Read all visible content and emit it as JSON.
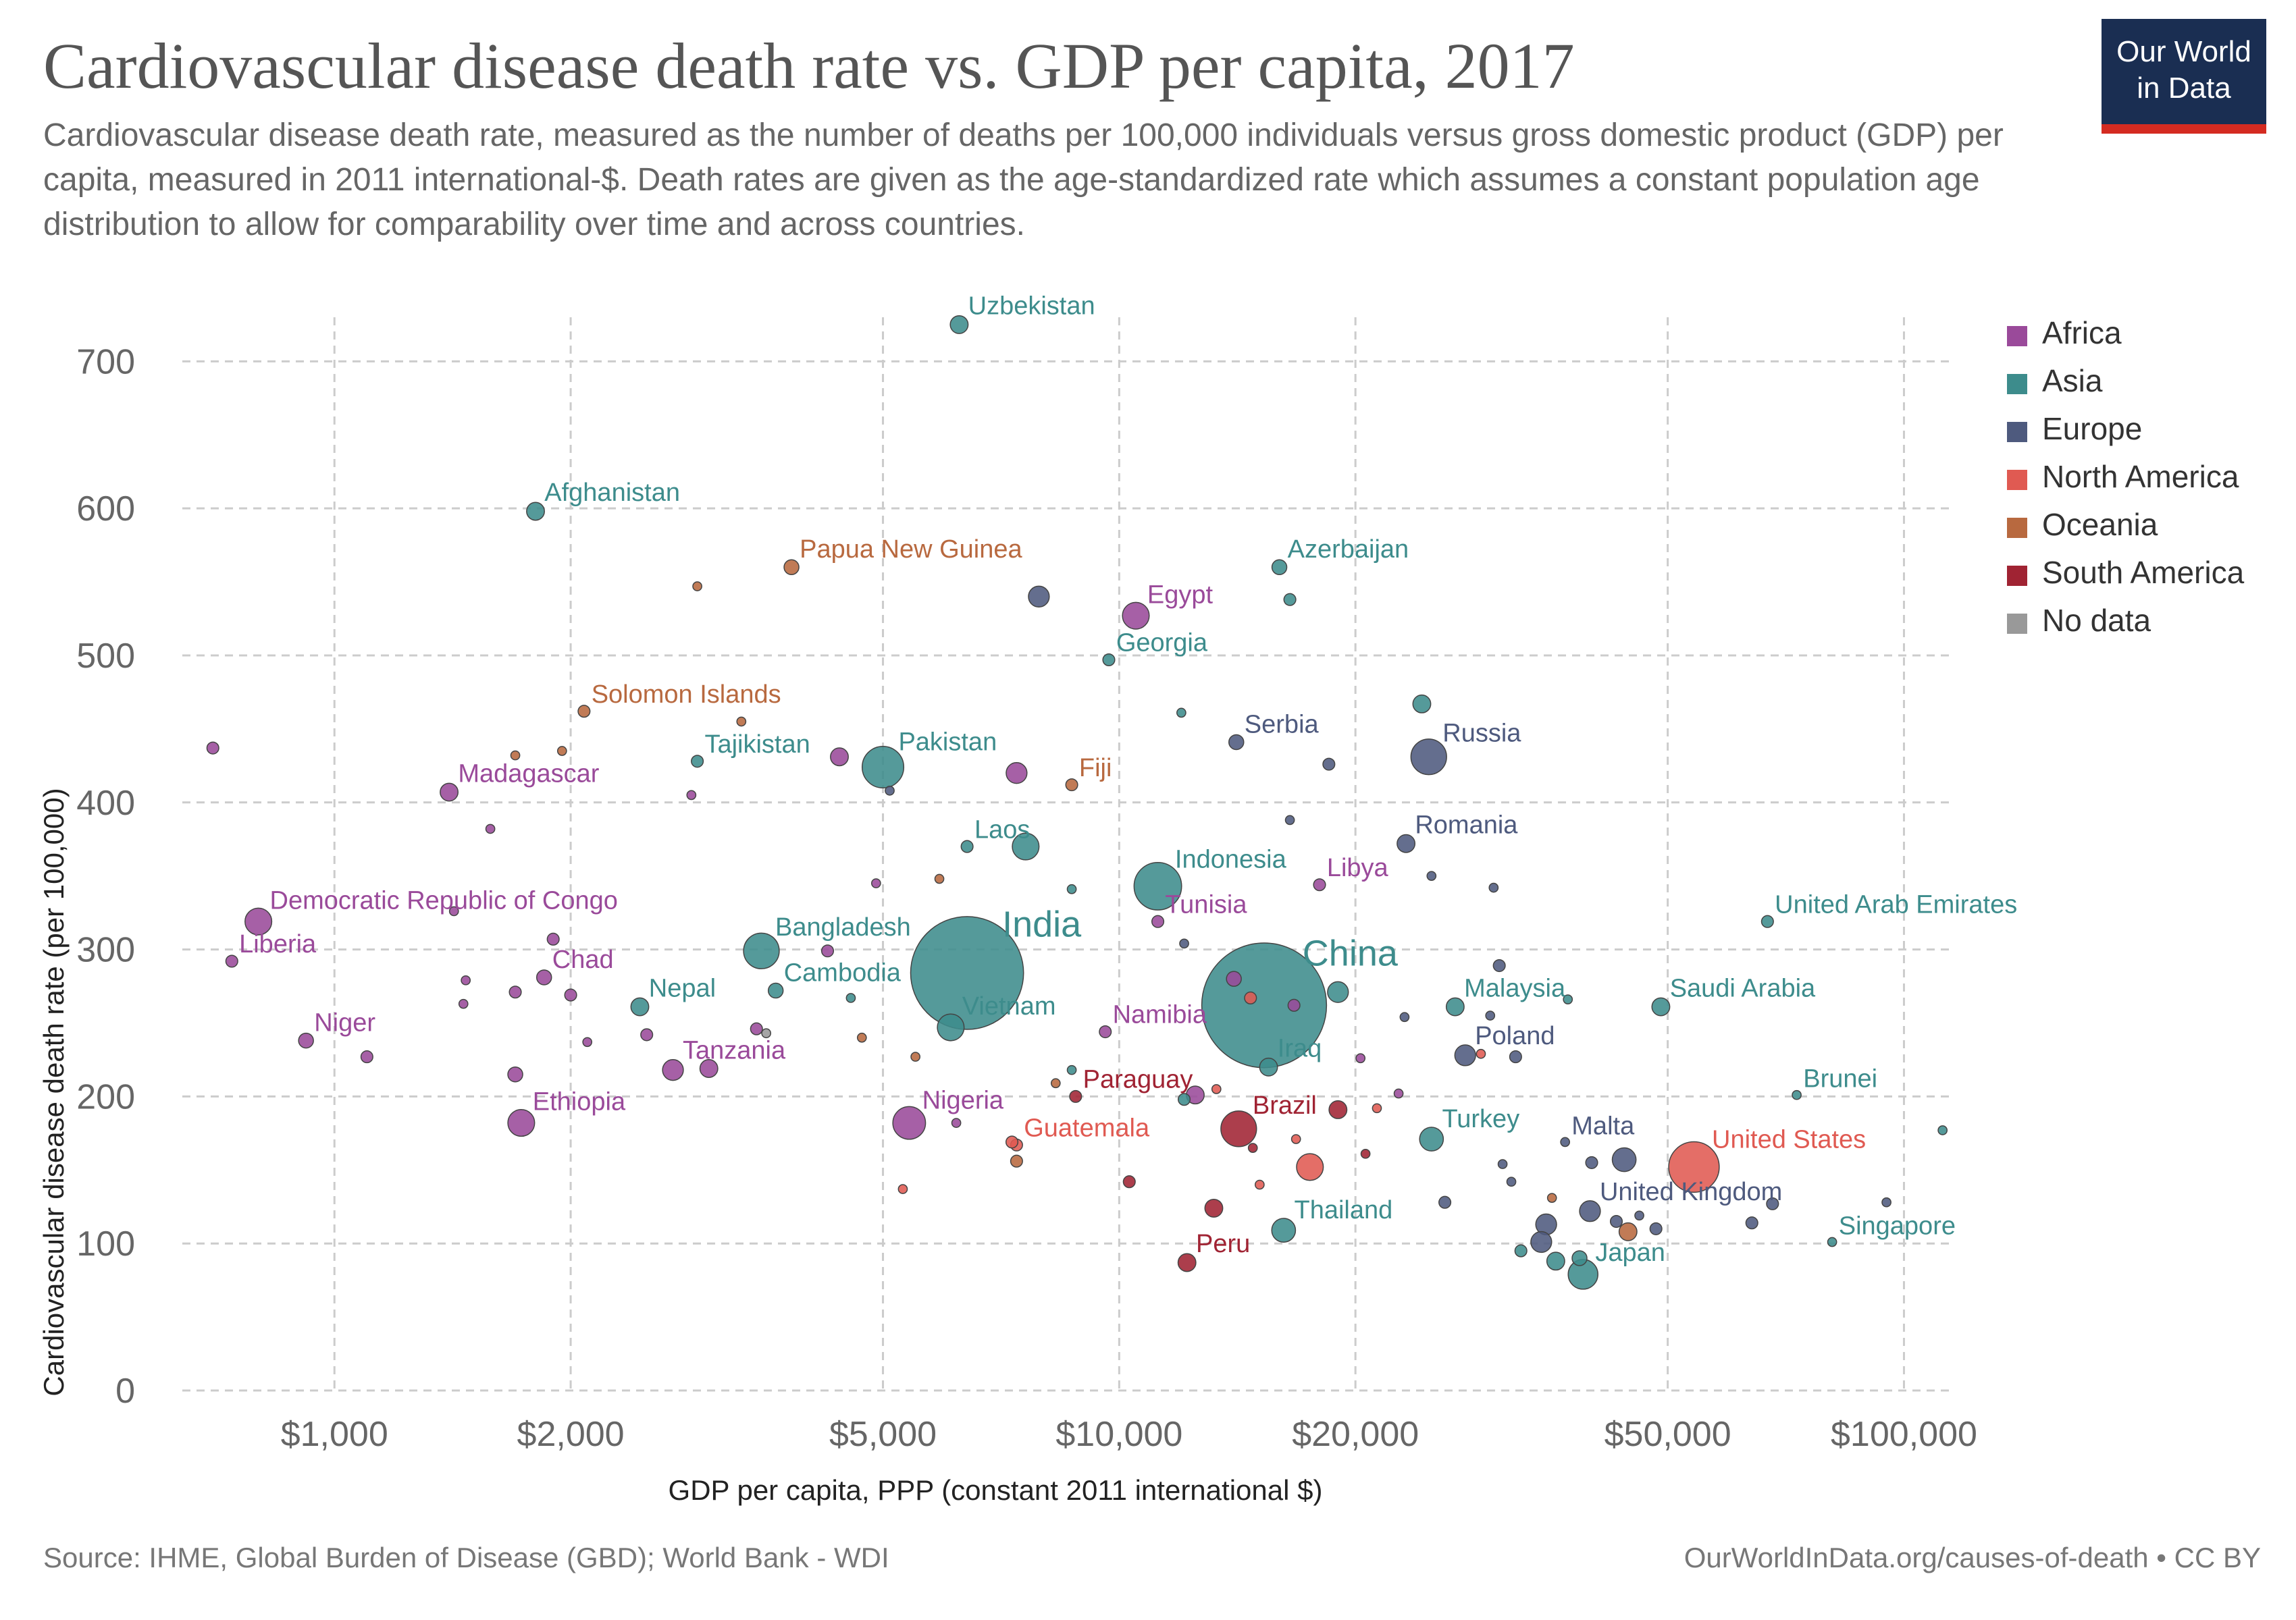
{
  "header": {
    "title": "Cardiovascular disease death rate vs. GDP per capita, 2017",
    "subtitle": "Cardiovascular disease death rate, measured as the number of deaths per 100,000 individuals versus gross domestic product (GDP) per capita, measured in 2011 international-$. Death rates are given as the age-standardized rate which assumes a constant population age distribution to allow for comparability over time and across countries."
  },
  "logo": {
    "line1": "Our World",
    "line2": "in Data"
  },
  "footer": {
    "source": "Source: IHME, Global Burden of Disease (GBD); World Bank - WDI",
    "credit": "OurWorldInData.org/causes-of-death • CC BY"
  },
  "colors": {
    "Africa": "#9a4a9a",
    "Asia": "#3d8c8c",
    "Europe": "#4e5a7e",
    "North America": "#e05a52",
    "Oceania": "#b8693f",
    "South America": "#a02333",
    "No data": "#999999"
  },
  "chart_data": {
    "type": "scatter",
    "title": "Cardiovascular disease death rate vs. GDP per capita, 2017",
    "xlabel": "GDP per capita, PPP (constant 2011 international $)",
    "ylabel": "Cardiovascular disease death rate (per 100,000)",
    "x_scale": "log",
    "xlim": [
      640,
      115000
    ],
    "ylim": [
      0,
      730
    ],
    "x_ticks": [
      1000,
      2000,
      5000,
      10000,
      20000,
      50000,
      100000
    ],
    "x_tick_labels": [
      "$1,000",
      "$2,000",
      "$5,000",
      "$10,000",
      "$20,000",
      "$50,000",
      "$100,000"
    ],
    "y_ticks": [
      0,
      100,
      200,
      300,
      400,
      500,
      600,
      700
    ],
    "y_tick_labels": [
      "0",
      "100",
      "200",
      "300",
      "400",
      "500",
      "600",
      "700"
    ],
    "grid": true,
    "legend_position": "right",
    "legend": [
      "Africa",
      "Asia",
      "Europe",
      "North America",
      "Oceania",
      "South America",
      "No data"
    ],
    "points": [
      {
        "label": "Uzbekistan",
        "region": "Asia",
        "x": 6253,
        "y": 725,
        "size": 6
      },
      {
        "label": "Afghanistan",
        "region": "Asia",
        "x": 1804,
        "y": 598,
        "size": 6
      },
      {
        "label": "Papua New Guinea",
        "region": "Oceania",
        "x": 3823,
        "y": 560,
        "size": 5
      },
      {
        "label": "Azerbaijan",
        "region": "Asia",
        "x": 16000,
        "y": 560,
        "size": 5
      },
      {
        "label": "Egypt",
        "region": "Africa",
        "x": 10500,
        "y": 527,
        "size": 9
      },
      {
        "label": "Georgia",
        "region": "Asia",
        "x": 9700,
        "y": 497,
        "size": 4
      },
      {
        "label": "Solomon Islands",
        "region": "Oceania",
        "x": 2080,
        "y": 462,
        "size": 4
      },
      {
        "label": "Serbia",
        "region": "Europe",
        "x": 14100,
        "y": 441,
        "size": 5
      },
      {
        "label": "Russia",
        "region": "Europe",
        "x": 24800,
        "y": 431,
        "size": 12
      },
      {
        "label": "Pakistan",
        "region": "Asia",
        "x": 5000,
        "y": 424,
        "size": 14
      },
      {
        "label": "Tajikistan",
        "region": "Asia",
        "x": 2900,
        "y": 428,
        "size": 4
      },
      {
        "label": "Fiji",
        "region": "Oceania",
        "x": 8700,
        "y": 412,
        "size": 4
      },
      {
        "label": "Madagascar",
        "region": "Africa",
        "x": 1400,
        "y": 407,
        "size": 6
      },
      {
        "label": "Laos",
        "region": "Asia",
        "x": 6400,
        "y": 370,
        "size": 4
      },
      {
        "label": "Romania",
        "region": "Europe",
        "x": 23200,
        "y": 372,
        "size": 6
      },
      {
        "label": "Indonesia",
        "region": "Asia",
        "x": 11200,
        "y": 343,
        "size": 16
      },
      {
        "label": "Libya",
        "region": "Africa",
        "x": 18000,
        "y": 344,
        "size": 4
      },
      {
        "label": "Democratic Republic of Congo",
        "region": "Africa",
        "x": 800,
        "y": 319,
        "size": 9
      },
      {
        "label": "United Arab Emirates",
        "region": "Asia",
        "x": 67000,
        "y": 319,
        "size": 4
      },
      {
        "label": "Tunisia",
        "region": "Africa",
        "x": 11200,
        "y": 319,
        "size": 4
      },
      {
        "label": "India",
        "region": "Asia",
        "x": 6400,
        "y": 284,
        "size": 38
      },
      {
        "label": "Bangladesh",
        "region": "Asia",
        "x": 3500,
        "y": 299,
        "size": 12
      },
      {
        "label": "China",
        "region": "Asia",
        "x": 15300,
        "y": 262,
        "size": 42
      },
      {
        "label": "Liberia",
        "region": "Africa",
        "x": 740,
        "y": 292,
        "size": 4
      },
      {
        "label": "Chad",
        "region": "Africa",
        "x": 1850,
        "y": 281,
        "size": 5
      },
      {
        "label": "Cambodia",
        "region": "Asia",
        "x": 3650,
        "y": 272,
        "size": 5
      },
      {
        "label": "Malaysia",
        "region": "Asia",
        "x": 26800,
        "y": 261,
        "size": 6
      },
      {
        "label": "Saudi Arabia",
        "region": "Asia",
        "x": 49000,
        "y": 261,
        "size": 6
      },
      {
        "label": "Nepal",
        "region": "Asia",
        "x": 2450,
        "y": 261,
        "size": 6
      },
      {
        "label": "Vietnam",
        "region": "Asia",
        "x": 6100,
        "y": 247,
        "size": 9
      },
      {
        "label": "Namibia",
        "region": "Africa",
        "x": 9600,
        "y": 244,
        "size": 4
      },
      {
        "label": "Niger",
        "region": "Africa",
        "x": 920,
        "y": 238,
        "size": 5
      },
      {
        "label": "Poland",
        "region": "Europe",
        "x": 27600,
        "y": 228,
        "size": 7
      },
      {
        "label": "Tanzania",
        "region": "Africa",
        "x": 2700,
        "y": 218,
        "size": 7
      },
      {
        "label": "Iraq",
        "region": "Asia",
        "x": 15500,
        "y": 220,
        "size": 6
      },
      {
        "label": "Brunei",
        "region": "Asia",
        "x": 73000,
        "y": 201,
        "size": 3
      },
      {
        "label": "Paraguay",
        "region": "South America",
        "x": 8800,
        "y": 200,
        "size": 4
      },
      {
        "label": "Ethiopia",
        "region": "Africa",
        "x": 1730,
        "y": 182,
        "size": 9
      },
      {
        "label": "Nigeria",
        "region": "Africa",
        "x": 5400,
        "y": 182,
        "size": 11
      },
      {
        "label": "Brazil",
        "region": "South America",
        "x": 14200,
        "y": 178,
        "size": 12
      },
      {
        "label": "Turkey",
        "region": "Asia",
        "x": 25000,
        "y": 171,
        "size": 8
      },
      {
        "label": "Malta",
        "region": "Europe",
        "x": 37000,
        "y": 169,
        "size": 3
      },
      {
        "label": "United States",
        "region": "North America",
        "x": 54000,
        "y": 152,
        "size": 17
      },
      {
        "label": "Guatemala",
        "region": "North America",
        "x": 7400,
        "y": 167,
        "size": 4
      },
      {
        "label": "United Kingdom",
        "region": "Europe",
        "x": 39800,
        "y": 122,
        "size": 7
      },
      {
        "label": "Thailand",
        "region": "Asia",
        "x": 16200,
        "y": 109,
        "size": 8
      },
      {
        "label": "Singapore",
        "region": "Asia",
        "x": 81000,
        "y": 101,
        "size": 3
      },
      {
        "label": "Peru",
        "region": "South America",
        "x": 12200,
        "y": 87,
        "size": 6
      },
      {
        "label": "Japan",
        "region": "Asia",
        "x": 39000,
        "y": 79,
        "size": 10
      },
      {
        "label": "",
        "region": "Africa",
        "x": 700,
        "y": 437,
        "size": 4
      },
      {
        "label": "",
        "region": "Oceania",
        "x": 2900,
        "y": 547,
        "size": 3
      },
      {
        "label": "",
        "region": "Europe",
        "x": 7900,
        "y": 540,
        "size": 7
      },
      {
        "label": "",
        "region": "Asia",
        "x": 16500,
        "y": 538,
        "size": 4
      },
      {
        "label": "",
        "region": "Asia",
        "x": 12000,
        "y": 461,
        "size": 3
      },
      {
        "label": "",
        "region": "Asia",
        "x": 24300,
        "y": 467,
        "size": 6
      },
      {
        "label": "",
        "region": "Oceania",
        "x": 3300,
        "y": 455,
        "size": 3
      },
      {
        "label": "",
        "region": "Africa",
        "x": 4400,
        "y": 431,
        "size": 6
      },
      {
        "label": "",
        "region": "Africa",
        "x": 7400,
        "y": 420,
        "size": 7
      },
      {
        "label": "",
        "region": "Oceania",
        "x": 1700,
        "y": 432,
        "size": 3
      },
      {
        "label": "",
        "region": "Oceania",
        "x": 1950,
        "y": 435,
        "size": 3
      },
      {
        "label": "",
        "region": "Africa",
        "x": 2850,
        "y": 405,
        "size": 3
      },
      {
        "label": "",
        "region": "Europe",
        "x": 18500,
        "y": 426,
        "size": 4
      },
      {
        "label": "",
        "region": "Europe",
        "x": 5100,
        "y": 408,
        "size": 3
      },
      {
        "label": "",
        "region": "Africa",
        "x": 1580,
        "y": 382,
        "size": 3
      },
      {
        "label": "",
        "region": "Asia",
        "x": 7600,
        "y": 370,
        "size": 9
      },
      {
        "label": "",
        "region": "Europe",
        "x": 16500,
        "y": 388,
        "size": 3
      },
      {
        "label": "",
        "region": "Africa",
        "x": 4900,
        "y": 345,
        "size": 3
      },
      {
        "label": "",
        "region": "Oceania",
        "x": 5900,
        "y": 348,
        "size": 3
      },
      {
        "label": "",
        "region": "Asia",
        "x": 8700,
        "y": 341,
        "size": 3
      },
      {
        "label": "",
        "region": "Europe",
        "x": 25000,
        "y": 350,
        "size": 3
      },
      {
        "label": "",
        "region": "Europe",
        "x": 30000,
        "y": 342,
        "size": 3
      },
      {
        "label": "",
        "region": "Africa",
        "x": 1420,
        "y": 326,
        "size": 3
      },
      {
        "label": "",
        "region": "Africa",
        "x": 1900,
        "y": 307,
        "size": 4
      },
      {
        "label": "",
        "region": "Africa",
        "x": 4250,
        "y": 299,
        "size": 4
      },
      {
        "label": "",
        "region": "Europe",
        "x": 12100,
        "y": 304,
        "size": 3
      },
      {
        "label": "",
        "region": "Europe",
        "x": 30500,
        "y": 289,
        "size": 4
      },
      {
        "label": "",
        "region": "Africa",
        "x": 1470,
        "y": 279,
        "size": 3
      },
      {
        "label": "",
        "region": "Africa",
        "x": 1700,
        "y": 271,
        "size": 4
      },
      {
        "label": "",
        "region": "Africa",
        "x": 2000,
        "y": 269,
        "size": 4
      },
      {
        "label": "",
        "region": "Africa",
        "x": 1460,
        "y": 263,
        "size": 3
      },
      {
        "label": "",
        "region": "Asia",
        "x": 4550,
        "y": 267,
        "size": 3
      },
      {
        "label": "",
        "region": "Africa",
        "x": 14000,
        "y": 280,
        "size": 5
      },
      {
        "label": "",
        "region": "North America",
        "x": 14700,
        "y": 267,
        "size": 4
      },
      {
        "label": "",
        "region": "Africa",
        "x": 16700,
        "y": 262,
        "size": 4
      },
      {
        "label": "",
        "region": "Asia",
        "x": 19000,
        "y": 271,
        "size": 7
      },
      {
        "label": "",
        "region": "Europe",
        "x": 23100,
        "y": 254,
        "size": 3
      },
      {
        "label": "",
        "region": "Europe",
        "x": 29700,
        "y": 255,
        "size": 3
      },
      {
        "label": "",
        "region": "Asia",
        "x": 37300,
        "y": 266,
        "size": 3
      },
      {
        "label": "",
        "region": "Africa",
        "x": 2100,
        "y": 237,
        "size": 3
      },
      {
        "label": "",
        "region": "Africa",
        "x": 2500,
        "y": 242,
        "size": 4
      },
      {
        "label": "",
        "region": "Africa",
        "x": 3450,
        "y": 246,
        "size": 4
      },
      {
        "label": "",
        "region": "No data",
        "x": 3550,
        "y": 243,
        "size": 3
      },
      {
        "label": "",
        "region": "Oceania",
        "x": 4700,
        "y": 240,
        "size": 3
      },
      {
        "label": "",
        "region": "Africa",
        "x": 1100,
        "y": 227,
        "size": 4
      },
      {
        "label": "",
        "region": "Oceania",
        "x": 5500,
        "y": 227,
        "size": 3
      },
      {
        "label": "",
        "region": "Africa",
        "x": 3000,
        "y": 219,
        "size": 6
      },
      {
        "label": "",
        "region": "Africa",
        "x": 1700,
        "y": 215,
        "size": 5
      },
      {
        "label": "",
        "region": "Asia",
        "x": 8700,
        "y": 218,
        "size": 3
      },
      {
        "label": "",
        "region": "Africa",
        "x": 20300,
        "y": 226,
        "size": 3
      },
      {
        "label": "",
        "region": "North America",
        "x": 28900,
        "y": 229,
        "size": 3
      },
      {
        "label": "",
        "region": "Europe",
        "x": 32000,
        "y": 227,
        "size": 4
      },
      {
        "label": "",
        "region": "Asia",
        "x": 12100,
        "y": 198,
        "size": 4
      },
      {
        "label": "",
        "region": "Africa",
        "x": 12500,
        "y": 201,
        "size": 6
      },
      {
        "label": "",
        "region": "North America",
        "x": 13300,
        "y": 205,
        "size": 3
      },
      {
        "label": "",
        "region": "Oceania",
        "x": 8300,
        "y": 209,
        "size": 3
      },
      {
        "label": "",
        "region": "South America",
        "x": 19000,
        "y": 191,
        "size": 6
      },
      {
        "label": "",
        "region": "North America",
        "x": 21300,
        "y": 192,
        "size": 3
      },
      {
        "label": "",
        "region": "Africa",
        "x": 22700,
        "y": 202,
        "size": 3
      },
      {
        "label": "",
        "region": "Africa",
        "x": 6200,
        "y": 182,
        "size": 3
      },
      {
        "label": "",
        "region": "North America",
        "x": 7300,
        "y": 169,
        "size": 4
      },
      {
        "label": "",
        "region": "South America",
        "x": 14800,
        "y": 165,
        "size": 3
      },
      {
        "label": "",
        "region": "North America",
        "x": 16800,
        "y": 171,
        "size": 3
      },
      {
        "label": "",
        "region": "North America",
        "x": 17500,
        "y": 152,
        "size": 9
      },
      {
        "label": "",
        "region": "South America",
        "x": 20600,
        "y": 161,
        "size": 3
      },
      {
        "label": "",
        "region": "Europe",
        "x": 30800,
        "y": 154,
        "size": 3
      },
      {
        "label": "",
        "region": "Europe",
        "x": 31600,
        "y": 142,
        "size": 3
      },
      {
        "label": "",
        "region": "Europe",
        "x": 40000,
        "y": 155,
        "size": 4
      },
      {
        "label": "",
        "region": "Europe",
        "x": 44000,
        "y": 157,
        "size": 8
      },
      {
        "label": "",
        "region": "Oceania",
        "x": 7400,
        "y": 156,
        "size": 4
      },
      {
        "label": "",
        "region": "South America",
        "x": 10300,
        "y": 142,
        "size": 4
      },
      {
        "label": "",
        "region": "North America",
        "x": 15100,
        "y": 140,
        "size": 3
      },
      {
        "label": "",
        "region": "North America",
        "x": 5300,
        "y": 137,
        "size": 3
      },
      {
        "label": "",
        "region": "South America",
        "x": 13200,
        "y": 124,
        "size": 6
      },
      {
        "label": "",
        "region": "Europe",
        "x": 26000,
        "y": 128,
        "size": 4
      },
      {
        "label": "",
        "region": "Oceania",
        "x": 35600,
        "y": 131,
        "size": 3
      },
      {
        "label": "",
        "region": "Europe",
        "x": 35000,
        "y": 113,
        "size": 7
      },
      {
        "label": "",
        "region": "Europe",
        "x": 43000,
        "y": 115,
        "size": 4
      },
      {
        "label": "",
        "region": "Europe",
        "x": 46000,
        "y": 119,
        "size": 3
      },
      {
        "label": "",
        "region": "Oceania",
        "x": 44500,
        "y": 108,
        "size": 6
      },
      {
        "label": "",
        "region": "Europe",
        "x": 48300,
        "y": 110,
        "size": 4
      },
      {
        "label": "",
        "region": "Europe",
        "x": 64000,
        "y": 114,
        "size": 4
      },
      {
        "label": "",
        "region": "Europe",
        "x": 68000,
        "y": 127,
        "size": 4
      },
      {
        "label": "",
        "region": "Europe",
        "x": 95000,
        "y": 128,
        "size": 3
      },
      {
        "label": "",
        "region": "Europe",
        "x": 34500,
        "y": 101,
        "size": 7
      },
      {
        "label": "",
        "region": "Asia",
        "x": 36000,
        "y": 88,
        "size": 6
      },
      {
        "label": "",
        "region": "Asia",
        "x": 32500,
        "y": 95,
        "size": 4
      },
      {
        "label": "",
        "region": "Asia",
        "x": 38600,
        "y": 90,
        "size": 5
      },
      {
        "label": "",
        "region": "Asia",
        "x": 112000,
        "y": 177,
        "size": 3
      }
    ]
  }
}
